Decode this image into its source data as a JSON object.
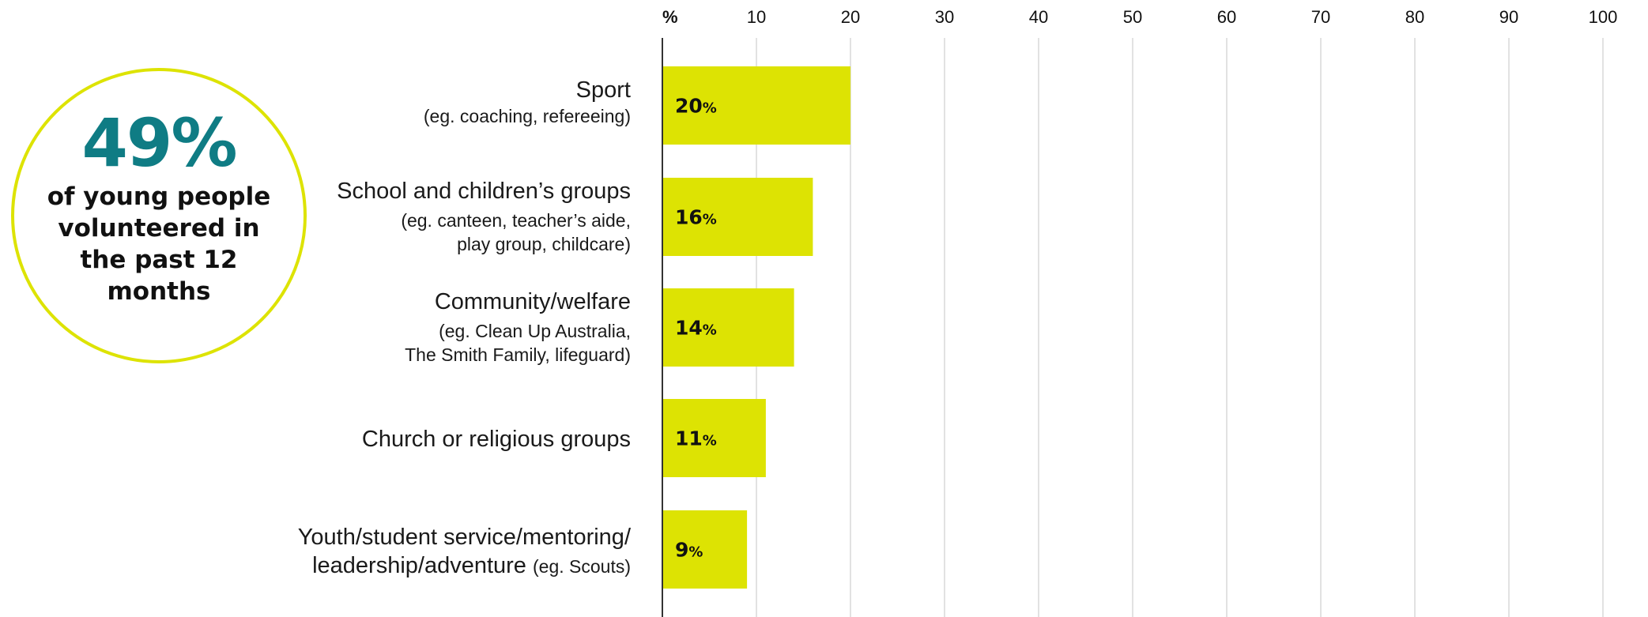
{
  "stat": {
    "value": "49%",
    "text": "of young people volunteered in the past 12 months"
  },
  "colors": {
    "bar": "#dde303",
    "circle_border": "#dde303",
    "stat_value": "#0f7c84",
    "grid": "#d9d9d9",
    "axis": "#333333"
  },
  "chart_data": {
    "type": "bar",
    "orientation": "horizontal",
    "unit_label": "%",
    "xlim": [
      0,
      100
    ],
    "ticks": [
      10,
      20,
      30,
      40,
      50,
      60,
      70,
      80,
      90,
      100
    ],
    "grid": true,
    "categories": [
      {
        "main": "Sport",
        "sub": "(eg. coaching, refereeing)",
        "sub2": "",
        "inline_sub": ""
      },
      {
        "main": "School and children’s groups",
        "sub": "(eg. canteen, teacher’s aide,",
        "sub2": "play group, childcare)",
        "inline_sub": ""
      },
      {
        "main": "Community/welfare",
        "sub": "(eg. Clean Up Australia,",
        "sub2": "The Smith Family, lifeguard)",
        "inline_sub": ""
      },
      {
        "main": "Church or religious groups",
        "sub": "",
        "sub2": "",
        "inline_sub": ""
      },
      {
        "main": "Youth/student service/mentoring/",
        "sub": "",
        "sub2": "leadership/adventure",
        "inline_sub": "(eg. Scouts)"
      }
    ],
    "values": [
      20,
      16,
      14,
      11,
      9
    ],
    "value_labels": [
      "20",
      "16",
      "14",
      "11",
      "9"
    ],
    "value_suffix": "%"
  }
}
